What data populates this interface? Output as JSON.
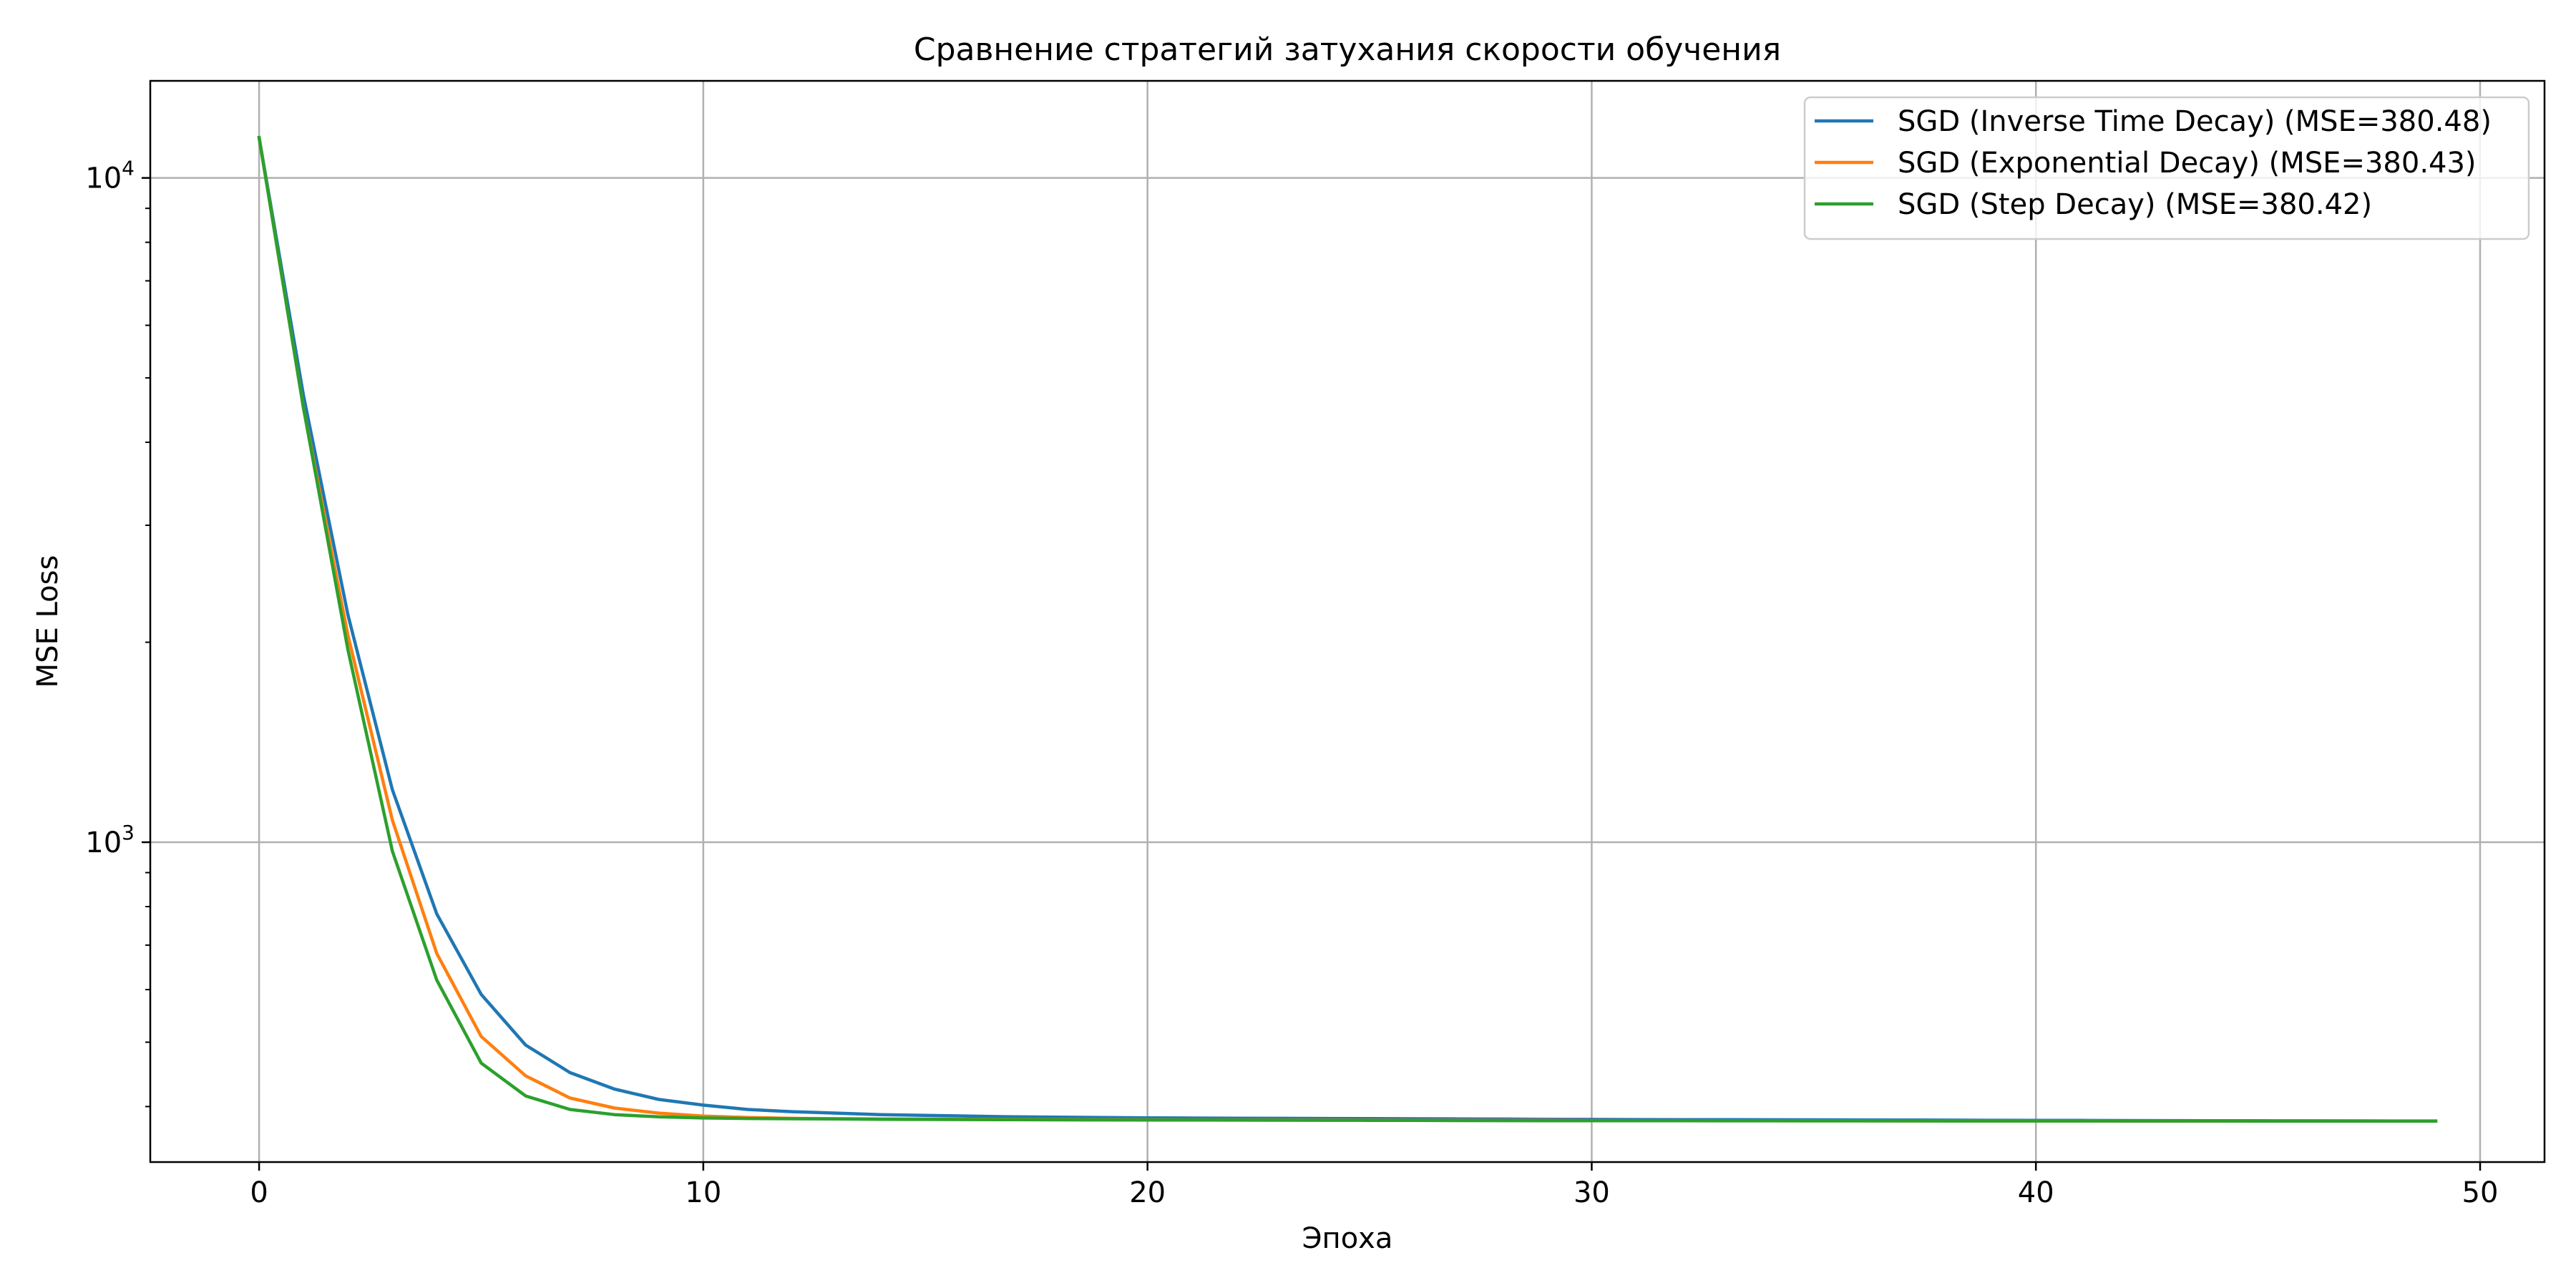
{
  "chart_data": {
    "type": "line",
    "title": "Сравнение стратегий затухания скорости обучения",
    "xlabel": "Эпоха",
    "ylabel": "MSE Loss",
    "yscale": "log",
    "xlim": [
      -2.45,
      51.45
    ],
    "ylim": [
      330,
      14000
    ],
    "x_ticks": [
      0,
      10,
      20,
      30,
      40,
      50
    ],
    "x_tick_labels": [
      "0",
      "10",
      "20",
      "30",
      "40",
      "50"
    ],
    "y_ticks": [
      1000,
      10000
    ],
    "y_tick_labels": [
      {
        "base": "10",
        "exp": "3"
      },
      {
        "base": "10",
        "exp": "4"
      }
    ],
    "grid": true,
    "legend_position": "top-right",
    "x": [
      0,
      1,
      2,
      3,
      4,
      5,
      6,
      7,
      8,
      9,
      10,
      11,
      12,
      13,
      14,
      15,
      16,
      17,
      18,
      19,
      20,
      21,
      22,
      23,
      24,
      25,
      26,
      27,
      28,
      29,
      30,
      31,
      32,
      33,
      34,
      35,
      36,
      37,
      38,
      39,
      40,
      41,
      42,
      43,
      44,
      45,
      46,
      47,
      48,
      49
    ],
    "series": [
      {
        "name": "SGD (Inverse Time Decay) (MSE=380.48)",
        "color": "#1f77b4",
        "values": [
          11500,
          4700,
          2200,
          1200,
          780,
          590,
          495,
          450,
          425,
          410,
          402,
          396,
          393,
          391,
          389,
          388,
          387,
          386,
          385.5,
          385,
          384.7,
          384.4,
          384.2,
          384,
          383.8,
          383.6,
          383.4,
          383.2,
          383,
          382.8,
          382.6,
          382.4,
          382.3,
          382.2,
          382.1,
          382,
          381.9,
          381.8,
          381.6,
          381.4,
          381.3,
          381.2,
          381.1,
          381,
          380.9,
          380.8,
          380.7,
          380.6,
          380.5,
          380.48
        ]
      },
      {
        "name": "SGD (Exponential Decay) (MSE=380.43)",
        "color": "#ff7f0e",
        "values": [
          11500,
          4500,
          2050,
          1080,
          680,
          510,
          445,
          412,
          398,
          391,
          387,
          385,
          384,
          383.5,
          383.2,
          383,
          382.8,
          382.6,
          382.4,
          382.2,
          382.1,
          382,
          381.9,
          381.8,
          381.7,
          381.6,
          381.5,
          381.4,
          381.3,
          381.2,
          381.1,
          381,
          380.95,
          380.9,
          380.85,
          380.8,
          380.75,
          380.7,
          380.65,
          380.6,
          380.57,
          380.55,
          380.53,
          380.51,
          380.49,
          380.47,
          380.46,
          380.45,
          380.44,
          380.43
        ]
      },
      {
        "name": "SGD (Step Decay) (MSE=380.42)",
        "color": "#2ca02c",
        "values": [
          11500,
          4500,
          1950,
          970,
          620,
          465,
          415,
          396,
          389,
          386,
          384.5,
          383.8,
          383.4,
          383.1,
          382.8,
          382.6,
          382.4,
          382.2,
          382,
          381.9,
          381.8,
          381.7,
          381.6,
          381.5,
          381.4,
          381.3,
          381.2,
          381.1,
          381,
          380.9,
          380.85,
          380.8,
          380.75,
          380.7,
          380.65,
          380.6,
          380.57,
          380.55,
          380.53,
          380.51,
          380.49,
          380.48,
          380.47,
          380.46,
          380.45,
          380.44,
          380.43,
          380.43,
          380.42,
          380.42
        ]
      }
    ]
  }
}
